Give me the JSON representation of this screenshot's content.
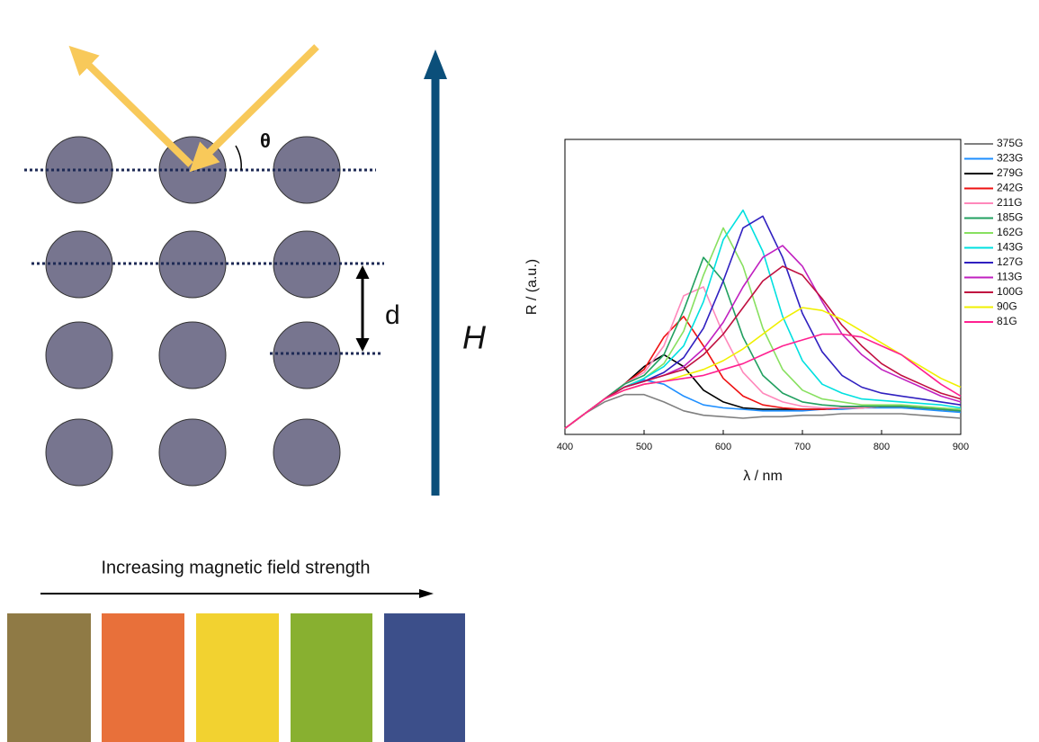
{
  "diagram": {
    "angle_label": "θ",
    "spacing_label": "d",
    "field_label": "H",
    "caption": "Increasing magnetic field strength"
  },
  "chart_data": {
    "type": "line",
    "xlabel": "λ / nm",
    "ylabel": "R / (a.u.)",
    "x": [
      400,
      425,
      450,
      475,
      500,
      525,
      550,
      575,
      600,
      625,
      650,
      675,
      700,
      725,
      750,
      775,
      800,
      825,
      850,
      875,
      900
    ],
    "xlim": [
      400,
      900
    ],
    "xticks": [
      400,
      500,
      600,
      700,
      800,
      900
    ],
    "ylim": [
      0,
      1
    ],
    "legend": "outside-right",
    "series": [
      {
        "name": "375G",
        "color": "#808080",
        "values": [
          0.02,
          0.07,
          0.11,
          0.135,
          0.135,
          0.11,
          0.08,
          0.065,
          0.06,
          0.055,
          0.06,
          0.06,
          0.065,
          0.065,
          0.07,
          0.07,
          0.07,
          0.07,
          0.065,
          0.06,
          0.055
        ]
      },
      {
        "name": "323G",
        "color": "#1e8fff",
        "values": [
          0.02,
          0.07,
          0.12,
          0.16,
          0.185,
          0.17,
          0.13,
          0.1,
          0.09,
          0.085,
          0.08,
          0.08,
          0.08,
          0.085,
          0.085,
          0.09,
          0.09,
          0.09,
          0.085,
          0.08,
          0.075
        ]
      },
      {
        "name": "279G",
        "color": "#000000",
        "values": [
          0.02,
          0.07,
          0.12,
          0.17,
          0.23,
          0.27,
          0.23,
          0.15,
          0.11,
          0.09,
          0.085,
          0.085,
          0.085,
          0.085,
          0.09,
          0.09,
          0.095,
          0.095,
          0.09,
          0.085,
          0.08
        ]
      },
      {
        "name": "242G",
        "color": "#ee1111",
        "values": [
          0.02,
          0.07,
          0.12,
          0.17,
          0.22,
          0.33,
          0.4,
          0.3,
          0.19,
          0.13,
          0.1,
          0.09,
          0.085,
          0.085,
          0.09,
          0.09,
          0.095,
          0.095,
          0.09,
          0.085,
          0.08
        ]
      },
      {
        "name": "211G",
        "color": "#ff88bb",
        "values": [
          0.02,
          0.07,
          0.12,
          0.17,
          0.21,
          0.3,
          0.47,
          0.5,
          0.34,
          0.21,
          0.14,
          0.11,
          0.095,
          0.09,
          0.09,
          0.09,
          0.095,
          0.095,
          0.09,
          0.085,
          0.08
        ]
      },
      {
        "name": "185G",
        "color": "#22a060",
        "values": [
          0.02,
          0.07,
          0.12,
          0.17,
          0.2,
          0.27,
          0.42,
          0.6,
          0.52,
          0.33,
          0.2,
          0.14,
          0.11,
          0.1,
          0.095,
          0.095,
          0.095,
          0.095,
          0.09,
          0.085,
          0.08
        ]
      },
      {
        "name": "162G",
        "color": "#88e060",
        "values": [
          0.02,
          0.07,
          0.12,
          0.16,
          0.19,
          0.24,
          0.35,
          0.54,
          0.7,
          0.57,
          0.36,
          0.22,
          0.15,
          0.12,
          0.11,
          0.1,
          0.1,
          0.1,
          0.095,
          0.09,
          0.085
        ]
      },
      {
        "name": "143G",
        "color": "#00e0e0",
        "values": [
          0.02,
          0.07,
          0.12,
          0.16,
          0.19,
          0.23,
          0.3,
          0.45,
          0.66,
          0.76,
          0.62,
          0.4,
          0.25,
          0.17,
          0.14,
          0.12,
          0.115,
          0.11,
          0.105,
          0.1,
          0.09
        ]
      },
      {
        "name": "127G",
        "color": "#3020c0",
        "values": [
          0.02,
          0.07,
          0.12,
          0.16,
          0.18,
          0.21,
          0.26,
          0.36,
          0.52,
          0.7,
          0.74,
          0.6,
          0.41,
          0.28,
          0.2,
          0.16,
          0.14,
          0.13,
          0.12,
          0.11,
          0.1
        ]
      },
      {
        "name": "113G",
        "color": "#c020c0",
        "values": [
          0.02,
          0.07,
          0.12,
          0.16,
          0.18,
          0.2,
          0.23,
          0.29,
          0.38,
          0.5,
          0.6,
          0.64,
          0.57,
          0.45,
          0.34,
          0.27,
          0.22,
          0.19,
          0.16,
          0.13,
          0.11
        ]
      },
      {
        "name": "100G",
        "color": "#c01040",
        "values": [
          0.02,
          0.07,
          0.12,
          0.16,
          0.18,
          0.2,
          0.22,
          0.27,
          0.34,
          0.43,
          0.52,
          0.57,
          0.54,
          0.46,
          0.37,
          0.3,
          0.24,
          0.2,
          0.17,
          0.14,
          0.12
        ]
      },
      {
        "name": "90G",
        "color": "#f0f000",
        "values": [
          0.02,
          0.07,
          0.12,
          0.15,
          0.17,
          0.18,
          0.2,
          0.22,
          0.25,
          0.29,
          0.34,
          0.39,
          0.43,
          0.42,
          0.39,
          0.35,
          0.31,
          0.27,
          0.23,
          0.19,
          0.16
        ]
      },
      {
        "name": "81G",
        "color": "#ff2090",
        "values": [
          0.02,
          0.07,
          0.12,
          0.15,
          0.17,
          0.18,
          0.19,
          0.2,
          0.22,
          0.24,
          0.27,
          0.3,
          0.32,
          0.34,
          0.34,
          0.33,
          0.3,
          0.27,
          0.22,
          0.17,
          0.13
        ]
      }
    ]
  }
}
